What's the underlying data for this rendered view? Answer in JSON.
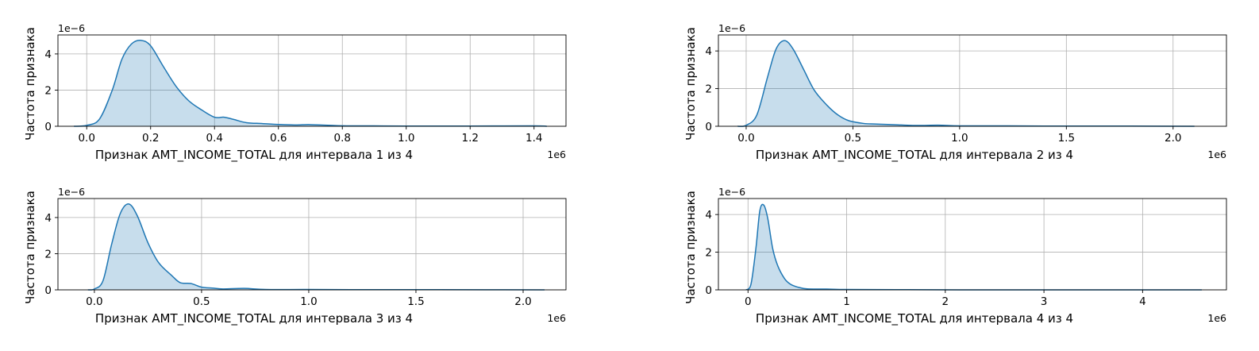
{
  "chart_data": [
    {
      "type": "area",
      "xlabel": "Признак AMT_INCOME_TOTAL для интервала 1 из 4",
      "ylabel": "Частота признака",
      "x_offset_label": "1e6",
      "y_offset_label": "1e−6",
      "xlim": [
        -0.09,
        1.5
      ],
      "ylim": [
        0,
        5.05
      ],
      "xticks": [
        0.0,
        0.2,
        0.4,
        0.6,
        0.8,
        1.0,
        1.2,
        1.4
      ],
      "xtick_labels": [
        "0.0",
        "0.2",
        "0.4",
        "0.6",
        "0.8",
        "1.0",
        "1.2",
        "1.4"
      ],
      "yticks": [
        0,
        2,
        4
      ],
      "ytick_labels": [
        "0",
        "2",
        "4"
      ],
      "grid": true,
      "x": [
        -0.04,
        0.0,
        0.04,
        0.08,
        0.11,
        0.14,
        0.17,
        0.2,
        0.24,
        0.28,
        0.32,
        0.36,
        0.4,
        0.43,
        0.46,
        0.5,
        0.55,
        0.6,
        0.65,
        0.7,
        0.8,
        0.9,
        1.0,
        1.2,
        1.4,
        1.44
      ],
      "y": [
        0.0,
        0.05,
        0.4,
        2.0,
        3.7,
        4.55,
        4.75,
        4.45,
        3.3,
        2.2,
        1.4,
        0.9,
        0.5,
        0.5,
        0.38,
        0.2,
        0.15,
        0.1,
        0.07,
        0.09,
        0.03,
        0.02,
        0.01,
        0.01,
        0.02,
        0.0
      ]
    },
    {
      "type": "area",
      "xlabel": "Признак AMT_INCOME_TOTAL для интервала 2 из 4",
      "ylabel": "Частота признака",
      "x_offset_label": "1e6",
      "y_offset_label": "1e−6",
      "xlim": [
        -0.13,
        2.25
      ],
      "ylim": [
        0,
        4.85
      ],
      "xticks": [
        0.0,
        0.5,
        1.0,
        1.5,
        2.0
      ],
      "xtick_labels": [
        "0.0",
        "0.5",
        "1.0",
        "1.5",
        "2.0"
      ],
      "yticks": [
        0,
        2,
        4
      ],
      "ytick_labels": [
        "0",
        "2",
        "4"
      ],
      "grid": true,
      "x": [
        -0.04,
        0.0,
        0.05,
        0.1,
        0.14,
        0.18,
        0.22,
        0.27,
        0.32,
        0.38,
        0.43,
        0.48,
        0.55,
        0.6,
        0.65,
        0.7,
        0.8,
        0.9,
        1.0,
        1.2,
        1.5,
        1.8,
        2.1
      ],
      "y": [
        0.0,
        0.05,
        0.6,
        2.6,
        4.1,
        4.55,
        4.1,
        3.0,
        1.9,
        1.1,
        0.6,
        0.3,
        0.15,
        0.12,
        0.1,
        0.08,
        0.04,
        0.06,
        0.02,
        0.02,
        0.01,
        0.01,
        0.0
      ]
    },
    {
      "type": "area",
      "xlabel": "Признак AMT_INCOME_TOTAL для интервала 3 из 4",
      "ylabel": "Частота признака",
      "x_offset_label": "1e6",
      "y_offset_label": "1e−6",
      "xlim": [
        -0.17,
        2.2
      ],
      "ylim": [
        0,
        5.05
      ],
      "xticks": [
        0.0,
        0.5,
        1.0,
        1.5,
        2.0
      ],
      "xtick_labels": [
        "0.0",
        "0.5",
        "1.0",
        "1.5",
        "2.0"
      ],
      "yticks": [
        0,
        2,
        4
      ],
      "ytick_labels": [
        "0",
        "2",
        "4"
      ],
      "grid": true,
      "x": [
        -0.03,
        0.0,
        0.04,
        0.08,
        0.12,
        0.16,
        0.2,
        0.25,
        0.3,
        0.36,
        0.4,
        0.45,
        0.5,
        0.55,
        0.6,
        0.7,
        0.8,
        1.0,
        1.3,
        1.6,
        2.1
      ],
      "y": [
        0.0,
        0.05,
        0.5,
        2.5,
        4.2,
        4.75,
        4.1,
        2.6,
        1.5,
        0.8,
        0.4,
        0.35,
        0.15,
        0.1,
        0.05,
        0.08,
        0.02,
        0.02,
        0.01,
        0.01,
        0.0
      ]
    },
    {
      "type": "area",
      "xlabel": "Признак AMT_INCOME_TOTAL для интервала 4 из 4",
      "ylabel": "Частота признака",
      "x_offset_label": "1e6",
      "y_offset_label": "1e−6",
      "xlim": [
        -0.3,
        4.85
      ],
      "ylim": [
        0,
        4.85
      ],
      "xticks": [
        0,
        1,
        2,
        3,
        4
      ],
      "xtick_labels": [
        "0",
        "1",
        "2",
        "3",
        "4"
      ],
      "yticks": [
        0,
        2,
        4
      ],
      "ytick_labels": [
        "0",
        "2",
        "4"
      ],
      "grid": true,
      "x": [
        -0.02,
        0.03,
        0.08,
        0.12,
        0.16,
        0.2,
        0.25,
        0.3,
        0.37,
        0.43,
        0.5,
        0.6,
        0.8,
        1.0,
        1.5,
        2.5,
        3.5,
        4.6
      ],
      "y": [
        0.0,
        0.3,
        2.2,
        4.2,
        4.5,
        3.8,
        2.2,
        1.3,
        0.6,
        0.3,
        0.15,
        0.05,
        0.04,
        0.02,
        0.01,
        0.0,
        0.0,
        0.0
      ]
    }
  ]
}
